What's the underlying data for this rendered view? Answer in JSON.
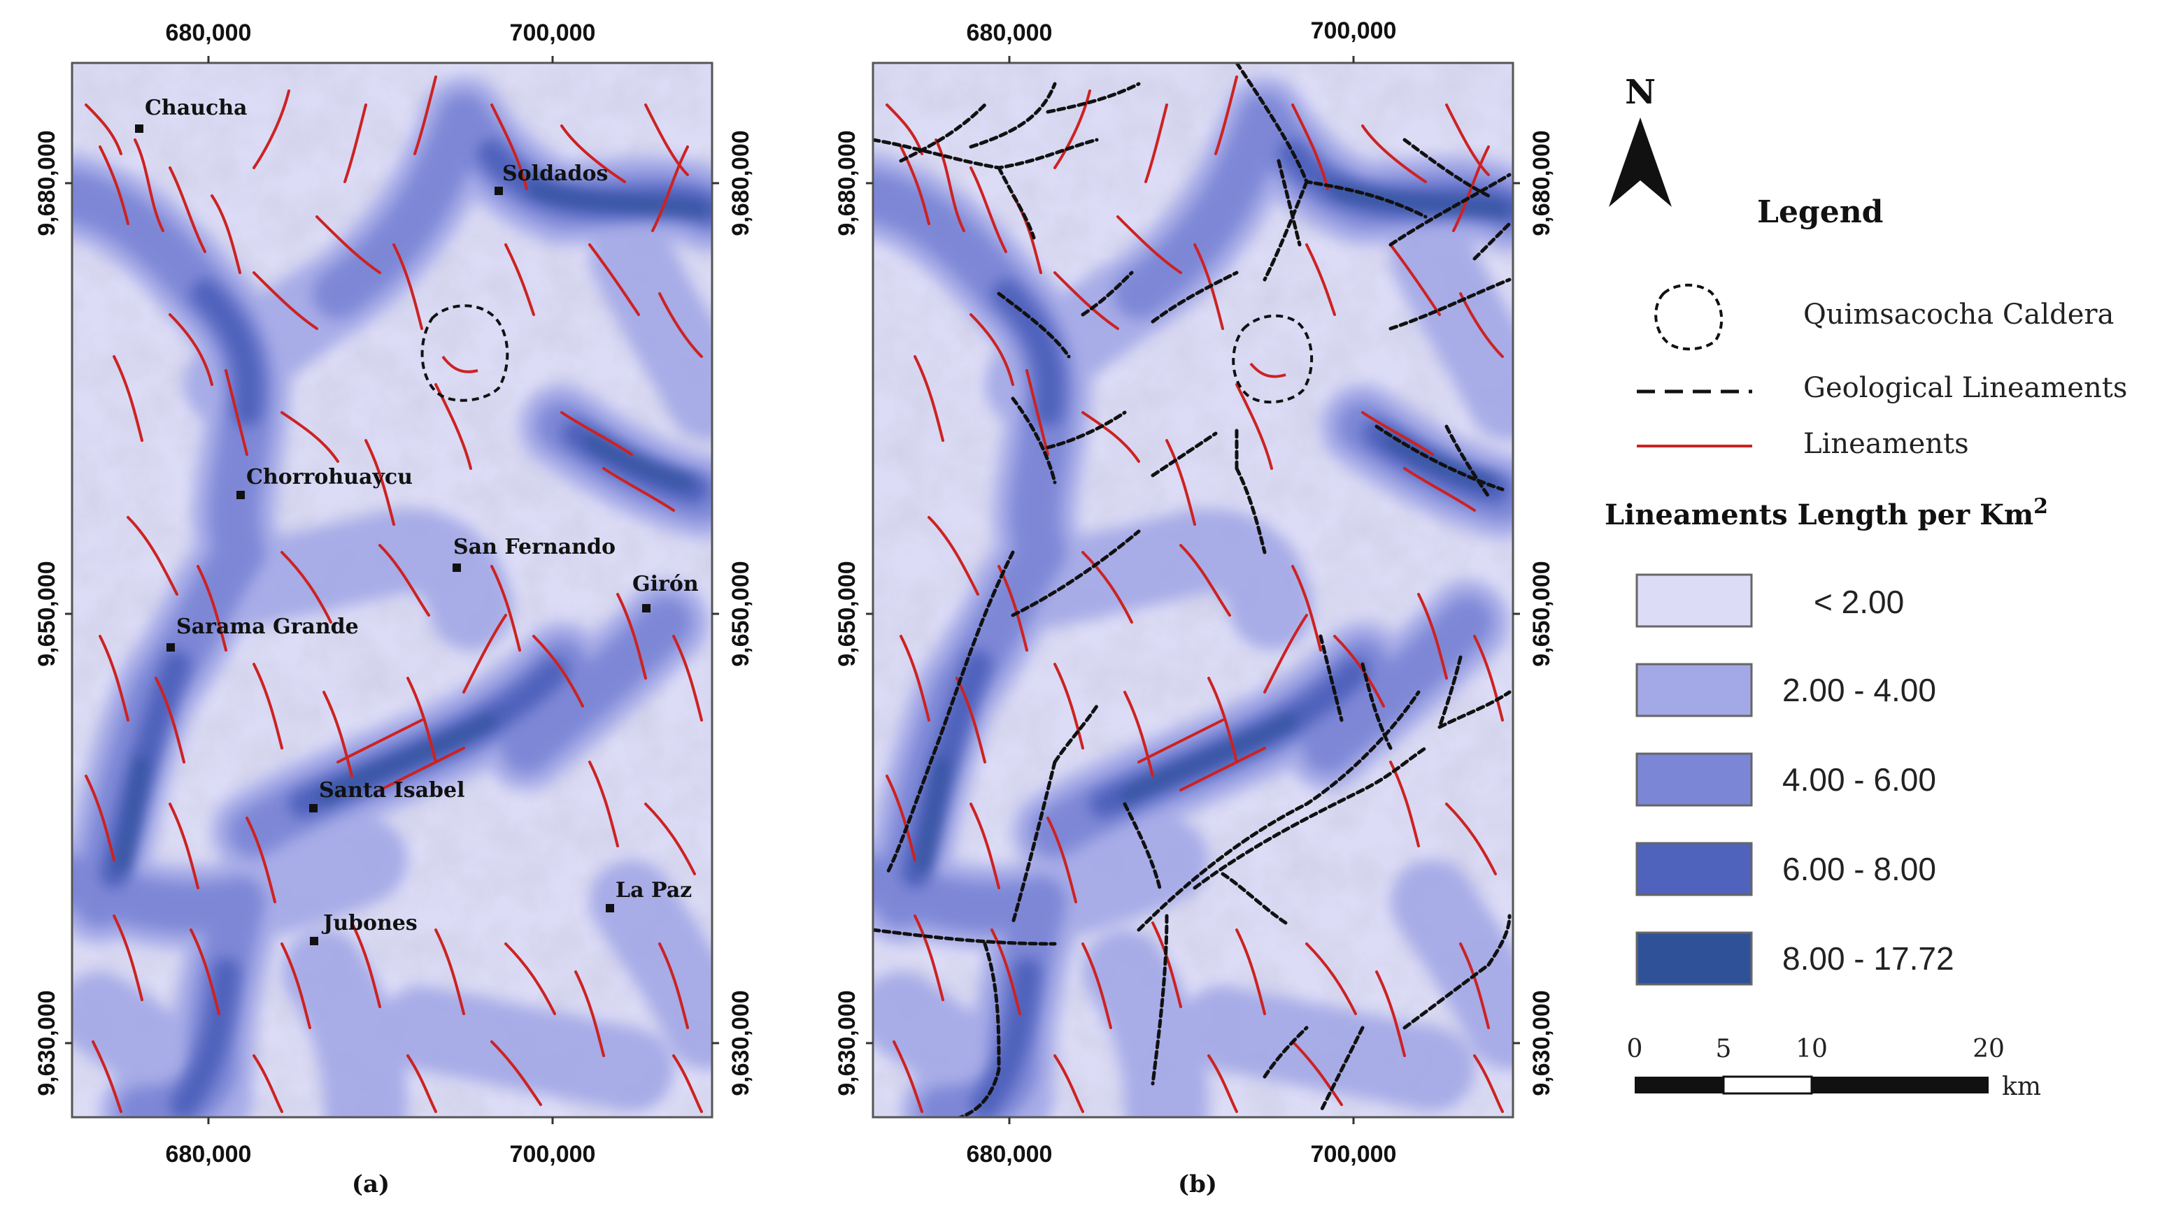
{
  "colors": {
    "c1": "#dcdcf6",
    "c2": "#a3a8e6",
    "c3": "#7b86d6",
    "c4": "#4f62bc",
    "c5": "#2f5198",
    "lineament": "#cc2222",
    "geological": "#111111"
  },
  "panel_a": {
    "caption": "(a)",
    "x_ticks": [
      "680,000",
      "700,000"
    ],
    "y_ticks": [
      "9,680,000",
      "9,650,000",
      "9,630,000"
    ],
    "towns": [
      "Chaucha",
      "Soldados",
      "Chorrohuaycu",
      "San Fernando",
      "Girón",
      "Sarama Grande",
      "Santa Isabel",
      "La Paz",
      "Jubones"
    ]
  },
  "panel_b": {
    "caption": "(b)",
    "x_ticks": [
      "680,000",
      "700,000"
    ],
    "y_ticks": [
      "9,680,000",
      "9,650,000",
      "9,630,000"
    ]
  },
  "north_label": "N",
  "legend": {
    "title": "Legend",
    "caldera": "Quimsacocha Caldera",
    "geological": "Geological Lineaments",
    "lineaments": "Lineaments",
    "density_title": "Lineaments Length per Km",
    "density_sup": "2",
    "classes": [
      "< 2.00",
      "2.00 - 4.00",
      "4.00 - 6.00",
      "6.00 - 8.00",
      "8.00 - 17.72"
    ]
  },
  "scalebar": {
    "ticks": [
      "0",
      "5",
      "10",
      "20"
    ],
    "unit": "km"
  }
}
